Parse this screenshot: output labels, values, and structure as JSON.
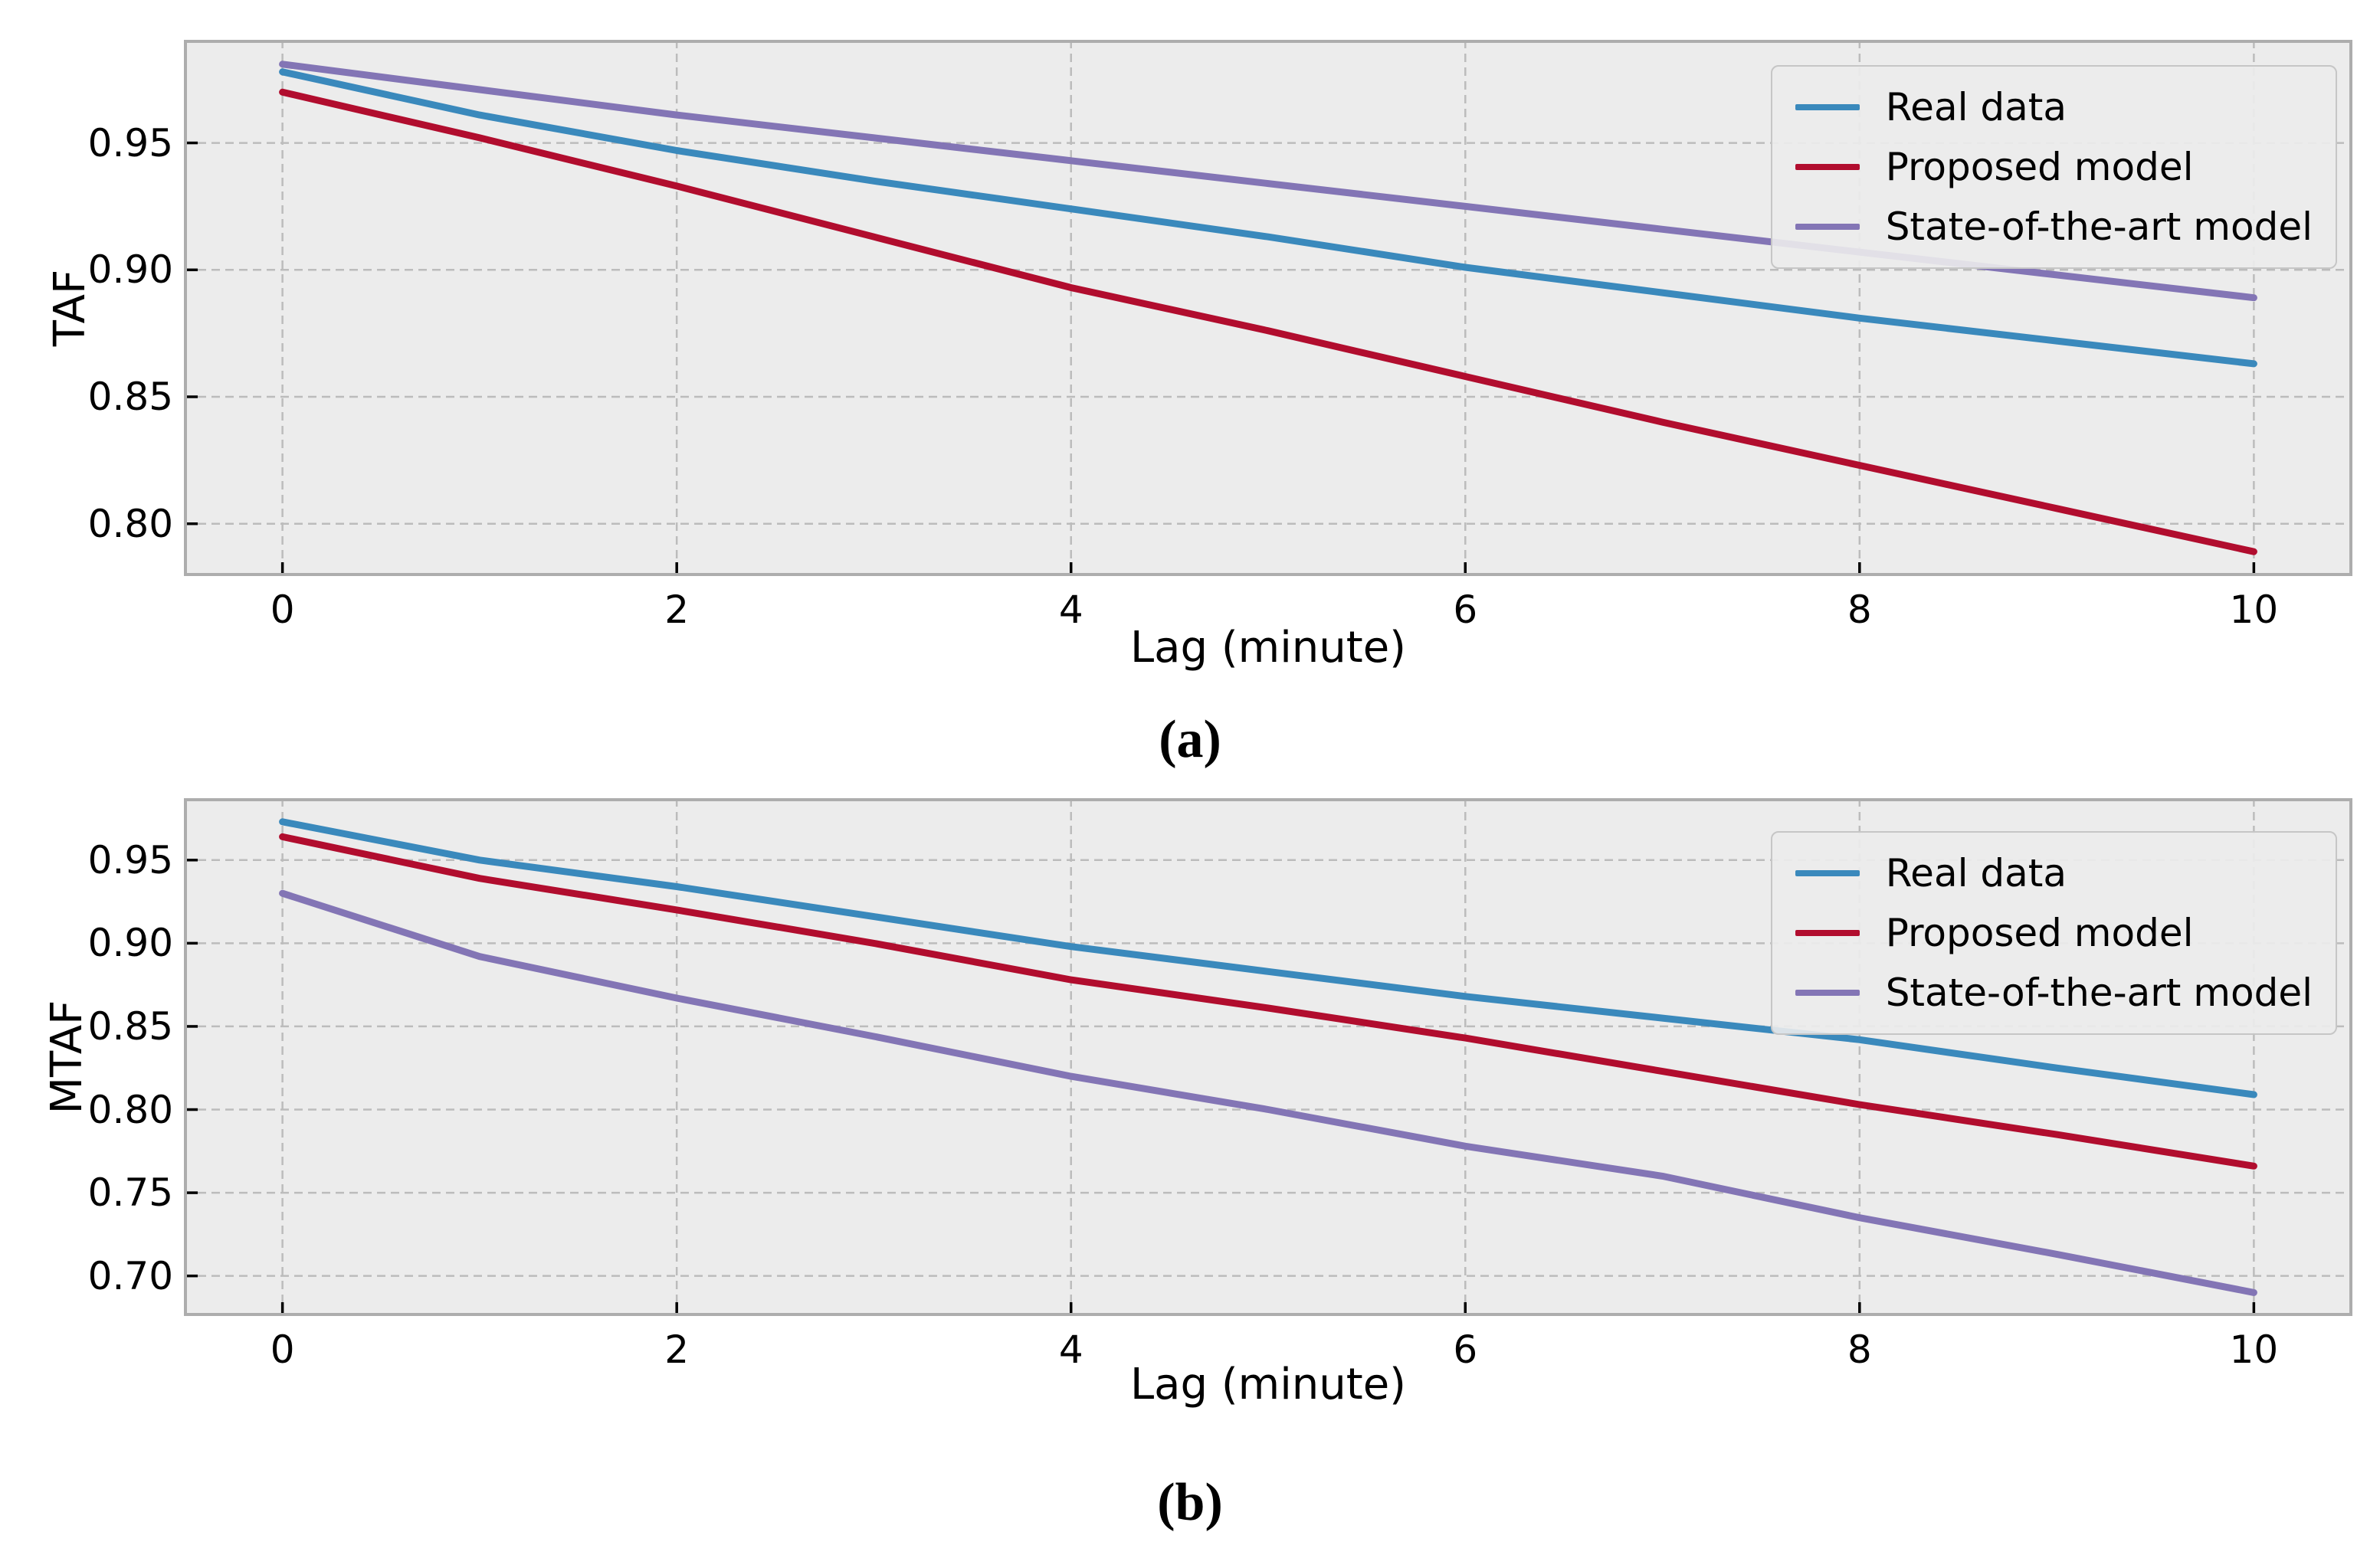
{
  "figure": {
    "background": "#ffffff"
  },
  "colors": {
    "plot_background": "#ececec",
    "gridline": "#bcbcbc",
    "spine": "#adadad",
    "tick_mark": "#000000",
    "text": "#000000",
    "real_data": "#3a89bc",
    "proposed_model": "#b10d2e",
    "state_of_the_art_model": "#8375b5"
  },
  "chart_data": [
    {
      "type": "line",
      "caption": "(a)",
      "xlabel": "Lag (minute)",
      "ylabel": "TAF",
      "x": [
        0,
        1,
        2,
        3,
        4,
        5,
        6,
        7,
        8,
        9,
        10
      ],
      "xtick_values": [
        0,
        2,
        4,
        6,
        8,
        10
      ],
      "xtick_labels": [
        "0",
        "2",
        "4",
        "6",
        "8",
        "10"
      ],
      "ytick_values": [
        0.95,
        0.9,
        0.85,
        0.8
      ],
      "ytick_labels": [
        "0.95",
        "0.90",
        "0.85",
        "0.80"
      ],
      "xlim": [
        -0.5,
        10.5
      ],
      "ylim": [
        0.7794,
        0.9906
      ],
      "grid": true,
      "grid_style": "dashed",
      "legend_position": "upper right",
      "series": [
        {
          "name": "Real data",
          "color": "#3a89bc",
          "values": [
            0.978,
            0.961,
            0.947,
            0.935,
            0.924,
            0.913,
            0.901,
            0.891,
            0.881,
            0.872,
            0.863
          ]
        },
        {
          "name": "Proposed model",
          "color": "#b10d2e",
          "values": [
            0.97,
            0.952,
            0.933,
            0.913,
            0.893,
            0.876,
            0.858,
            0.84,
            0.823,
            0.806,
            0.789
          ]
        },
        {
          "name": "State-of-the-art model",
          "color": "#8375b5",
          "values": [
            0.981,
            0.971,
            0.961,
            0.952,
            0.943,
            0.934,
            0.925,
            0.916,
            0.907,
            0.898,
            0.889
          ]
        }
      ]
    },
    {
      "type": "line",
      "caption": "(b)",
      "xlabel": "Lag (minute)",
      "ylabel": "MTAF",
      "x": [
        0,
        1,
        2,
        3,
        4,
        5,
        6,
        7,
        8,
        9,
        10
      ],
      "xtick_values": [
        0,
        2,
        4,
        6,
        8,
        10
      ],
      "xtick_labels": [
        "0",
        "2",
        "4",
        "6",
        "8",
        "10"
      ],
      "ytick_values": [
        0.95,
        0.9,
        0.85,
        0.8,
        0.75,
        0.7
      ],
      "ytick_labels": [
        "0.95",
        "0.90",
        "0.85",
        "0.80",
        "0.75",
        "0.70"
      ],
      "xlim": [
        -0.5,
        10.5
      ],
      "ylim": [
        0.6759,
        0.9872
      ],
      "grid": true,
      "grid_style": "dashed",
      "legend_position": "upper right",
      "series": [
        {
          "name": "Real data",
          "color": "#3a89bc",
          "values": [
            0.973,
            0.95,
            0.934,
            0.916,
            0.898,
            0.883,
            0.868,
            0.855,
            0.842,
            0.825,
            0.809
          ]
        },
        {
          "name": "Proposed model",
          "color": "#b10d2e",
          "values": [
            0.964,
            0.939,
            0.92,
            0.9,
            0.878,
            0.861,
            0.843,
            0.823,
            0.803,
            0.785,
            0.766
          ]
        },
        {
          "name": "State-of-the-art model",
          "color": "#8375b5",
          "values": [
            0.93,
            0.892,
            0.867,
            0.844,
            0.82,
            0.8,
            0.778,
            0.76,
            0.735,
            0.713,
            0.69
          ]
        }
      ]
    }
  ]
}
